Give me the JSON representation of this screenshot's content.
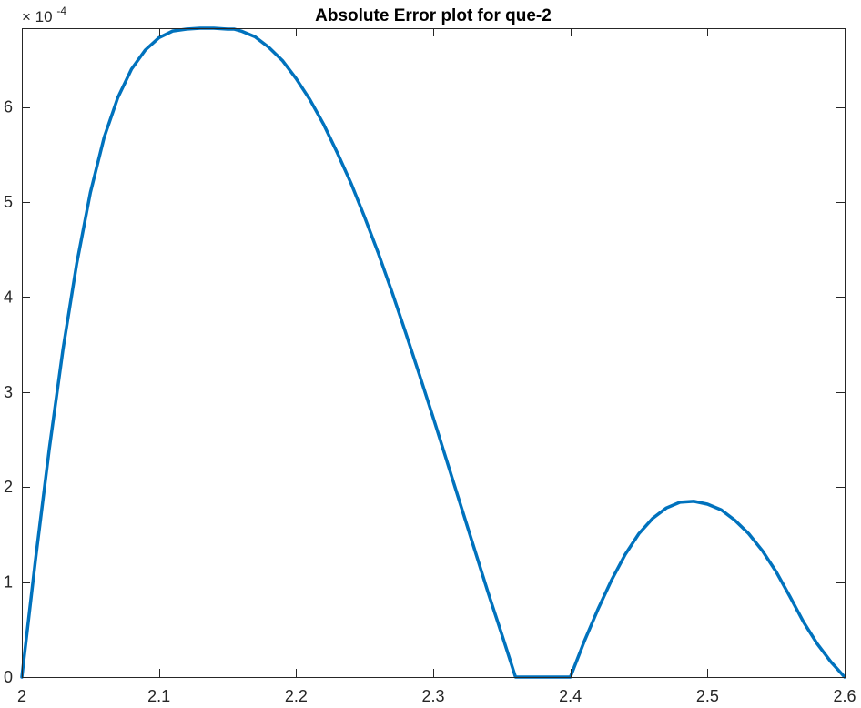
{
  "chart_data": {
    "type": "line",
    "title": "Absolute Error plot for que-2",
    "xlabel": "",
    "ylabel": "",
    "xlim": [
      2,
      2.6
    ],
    "ylim": [
      0,
      6.83
    ],
    "grid": false,
    "y_exponent": {
      "times": "×",
      "base": "10",
      "power": "-4"
    },
    "x_ticks": [
      {
        "value": 2,
        "label": "2"
      },
      {
        "value": 2.1,
        "label": "2.1"
      },
      {
        "value": 2.2,
        "label": "2.2"
      },
      {
        "value": 2.3,
        "label": "2.3"
      },
      {
        "value": 2.4,
        "label": "2.4"
      },
      {
        "value": 2.5,
        "label": "2.5"
      },
      {
        "value": 2.6,
        "label": "2.6"
      }
    ],
    "y_ticks": [
      {
        "value": 0,
        "label": "0"
      },
      {
        "value": 1,
        "label": "1"
      },
      {
        "value": 2,
        "label": "2"
      },
      {
        "value": 3,
        "label": "3"
      },
      {
        "value": 4,
        "label": "4"
      },
      {
        "value": 5,
        "label": "5"
      },
      {
        "value": 6,
        "label": "6"
      }
    ],
    "series": [
      {
        "color": "#0072BD",
        "x": [
          2.0,
          2.01,
          2.02,
          2.03,
          2.04,
          2.05,
          2.06,
          2.07,
          2.08,
          2.09,
          2.1,
          2.11,
          2.12,
          2.13,
          2.14,
          2.15,
          2.155,
          2.16,
          2.17,
          2.18,
          2.19,
          2.2,
          2.21,
          2.22,
          2.23,
          2.24,
          2.25,
          2.26,
          2.27,
          2.28,
          2.29,
          2.3,
          2.31,
          2.32,
          2.33,
          2.34,
          2.35,
          2.36,
          2.37,
          2.38,
          2.39,
          2.4,
          2.41,
          2.42,
          2.43,
          2.44,
          2.45,
          2.46,
          2.47,
          2.48,
          2.49,
          2.5,
          2.51,
          2.52,
          2.53,
          2.54,
          2.55,
          2.56,
          2.57,
          2.58,
          2.59,
          2.6
        ],
        "y": [
          0.0,
          1.24,
          2.4,
          3.45,
          4.35,
          5.1,
          5.68,
          6.1,
          6.4,
          6.6,
          6.73,
          6.8,
          6.82,
          6.83,
          6.83,
          6.82,
          6.82,
          6.8,
          6.74,
          6.63,
          6.49,
          6.3,
          6.08,
          5.82,
          5.52,
          5.2,
          4.84,
          4.46,
          4.05,
          3.62,
          3.18,
          2.73,
          2.27,
          1.81,
          1.35,
          0.89,
          0.45,
          0.0,
          0.0,
          0.0,
          0.0,
          0.0,
          0.37,
          0.71,
          1.02,
          1.29,
          1.51,
          1.67,
          1.78,
          1.84,
          1.85,
          1.82,
          1.76,
          1.65,
          1.51,
          1.33,
          1.11,
          0.85,
          0.58,
          0.35,
          0.16,
          0.0
        ]
      }
    ]
  }
}
